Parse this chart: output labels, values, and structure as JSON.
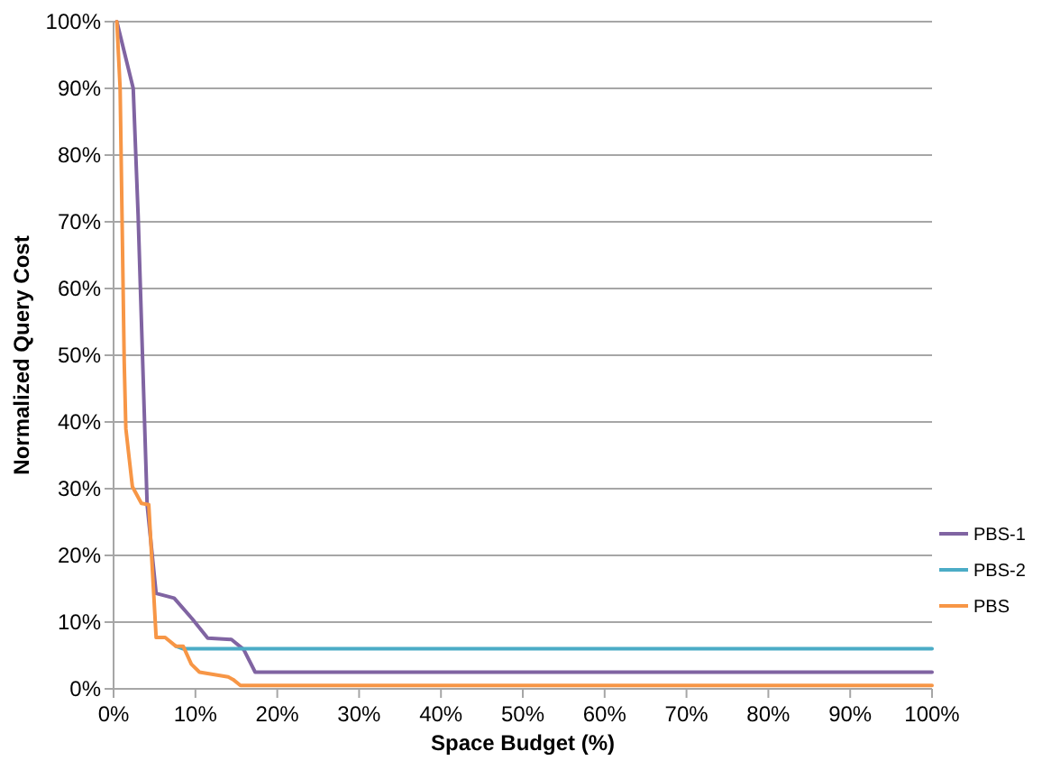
{
  "chart_data": {
    "type": "line",
    "xlabel": "Space Budget (%)",
    "ylabel": "Normalized Query Cost",
    "xlim": [
      0,
      100
    ],
    "ylim": [
      0,
      100
    ],
    "xticks": [
      {
        "value": 0,
        "label": "0%"
      },
      {
        "value": 10,
        "label": "10%"
      },
      {
        "value": 20,
        "label": "20%"
      },
      {
        "value": 30,
        "label": "30%"
      },
      {
        "value": 40,
        "label": "40%"
      },
      {
        "value": 50,
        "label": "50%"
      },
      {
        "value": 60,
        "label": "60%"
      },
      {
        "value": 70,
        "label": "70%"
      },
      {
        "value": 80,
        "label": "80%"
      },
      {
        "value": 90,
        "label": "90%"
      },
      {
        "value": 100,
        "label": "100%"
      }
    ],
    "yticks": [
      {
        "value": 0,
        "label": "0%"
      },
      {
        "value": 10,
        "label": "10%"
      },
      {
        "value": 20,
        "label": "20%"
      },
      {
        "value": 30,
        "label": "30%"
      },
      {
        "value": 40,
        "label": "40%"
      },
      {
        "value": 50,
        "label": "50%"
      },
      {
        "value": 60,
        "label": "60%"
      },
      {
        "value": 70,
        "label": "70%"
      },
      {
        "value": 80,
        "label": "80%"
      },
      {
        "value": 90,
        "label": "90%"
      },
      {
        "value": 100,
        "label": "100%"
      }
    ],
    "grid": "y",
    "legend": "right",
    "marker": "none",
    "line_style": "solid",
    "series": [
      {
        "name": "PBS-1",
        "color": "#8064a2",
        "x": [
          0.4,
          2.4,
          3.0,
          4.1,
          5.2,
          7.4,
          9.6,
          11.5,
          14.4,
          15.9,
          17.3,
          100
        ],
        "values": [
          100,
          90,
          71,
          27.6,
          14.3,
          13.6,
          10.5,
          7.6,
          7.4,
          5.9,
          2.5,
          2.5
        ]
      },
      {
        "name": "PBS-2",
        "color": "#4bacc6",
        "x": [
          7.6,
          8.5,
          100
        ],
        "values": [
          6.4,
          6,
          6
        ]
      },
      {
        "name": "PBS",
        "color": "#f79646",
        "x": [
          0.4,
          0.8,
          1.3,
          1.5,
          2.3,
          3.4,
          4.3,
          5.2,
          6.3,
          7.6,
          8.5,
          9.5,
          10.5,
          14.0,
          14.6,
          15.5,
          100
        ],
        "values": [
          100,
          90,
          49,
          39,
          30.3,
          27.8,
          27.6,
          7.7,
          7.7,
          6.4,
          6.4,
          3.7,
          2.5,
          1.8,
          1.4,
          0.5,
          0.5
        ]
      }
    ]
  }
}
